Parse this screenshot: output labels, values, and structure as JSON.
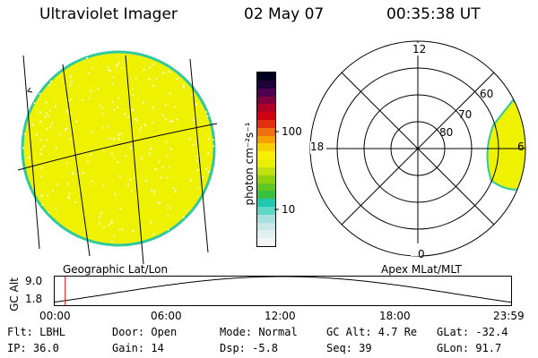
{
  "header": {
    "instrument": "Ultraviolet Imager",
    "date": "02 May 07",
    "time": "00:35:38 UT"
  },
  "colorbar": {
    "unit_label": "photon cm⁻²s⁻¹",
    "tick_100": "100",
    "tick_10": "10",
    "colors": [
      "#f4f4f4",
      "#e0f0f0",
      "#c8e8e8",
      "#a8e0e0",
      "#60d8c8",
      "#20c8b0",
      "#38c040",
      "#60c820",
      "#90d010",
      "#c0e010",
      "#e8f000",
      "#f8f000",
      "#f8d000",
      "#f8a000",
      "#f07010",
      "#e03010",
      "#d00010",
      "#b00028",
      "#80003c",
      "#500050",
      "#200038",
      "#000020"
    ]
  },
  "left_panel": {
    "label": "Geographic Lat/Lon"
  },
  "right_panel": {
    "label": "Apex MLat/MLT",
    "mlt_labels": {
      "top": "12",
      "bottom": "0",
      "left": "18",
      "right": "6"
    },
    "lat_labels": [
      "60",
      "70",
      "80"
    ]
  },
  "altitude_plot": {
    "ylabel": "GC Alt",
    "y_max": "9.0",
    "y_min": "1.8",
    "x_ticks": [
      "00:00",
      "06:00",
      "12:00",
      "18:00",
      "23:59"
    ],
    "current_time_fraction": 0.025
  },
  "status": {
    "flt": "Flt: LBHL",
    "ip": "IP: 36.0",
    "door": "Door: Open",
    "gain": "Gain: 14",
    "mode": "Mode: Normal",
    "dsp": "Dsp:   -5.8",
    "gc_alt": "GC Alt: 4.7 Re",
    "seq": "Seq: 39",
    "glat": "GLat: -32.4",
    "glon": "GLon:  91.7"
  },
  "colors": {
    "disk_fill": "#eef200",
    "disk_edge": "#30c8a0",
    "marker_red": "#d00000"
  }
}
